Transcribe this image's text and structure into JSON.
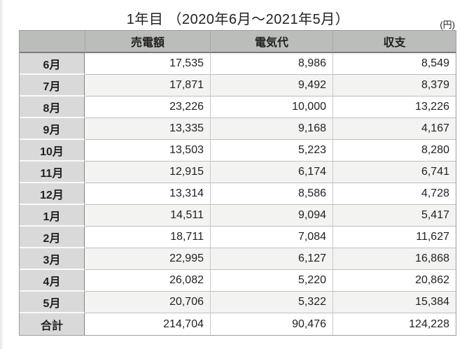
{
  "title": "1年目 （2020年6月～2021年5月）",
  "unit_label": "(円)",
  "chart_data": {
    "type": "table",
    "title": "1年目 （2020年6月～2021年5月）",
    "unit": "円",
    "columns": [
      "",
      "売電額",
      "電気代",
      "収支"
    ],
    "rows": [
      [
        "6月",
        "17,535",
        "8,986",
        "8,549"
      ],
      [
        "7月",
        "17,871",
        "9,492",
        "8,379"
      ],
      [
        "8月",
        "23,226",
        "10,000",
        "13,226"
      ],
      [
        "9月",
        "13,335",
        "9,168",
        "4,167"
      ],
      [
        "10月",
        "13,503",
        "5,223",
        "8,280"
      ],
      [
        "11月",
        "12,915",
        "6,174",
        "6,741"
      ],
      [
        "12月",
        "13,314",
        "8,586",
        "4,728"
      ],
      [
        "1月",
        "14,511",
        "9,094",
        "5,417"
      ],
      [
        "2月",
        "18,711",
        "7,084",
        "11,627"
      ],
      [
        "3月",
        "22,995",
        "6,127",
        "16,868"
      ],
      [
        "4月",
        "26,082",
        "5,220",
        "20,862"
      ],
      [
        "5月",
        "20,706",
        "5,322",
        "15,384"
      ],
      [
        "合計",
        "214,704",
        "90,476",
        "124,228"
      ]
    ],
    "total_row_label": "合計",
    "layout_hints": {
      "month_column_align": "center",
      "value_columns_align": "right",
      "striped_rows": true
    }
  },
  "colors": {
    "header_bg": "#babdb9",
    "month_column_bg": "#d9d9d9",
    "stripe_bg": "#f3f3f1",
    "outer_border": "#9d9d9d",
    "header_bottom_border": "#7b7b7b",
    "text": "#1f1f1f"
  }
}
